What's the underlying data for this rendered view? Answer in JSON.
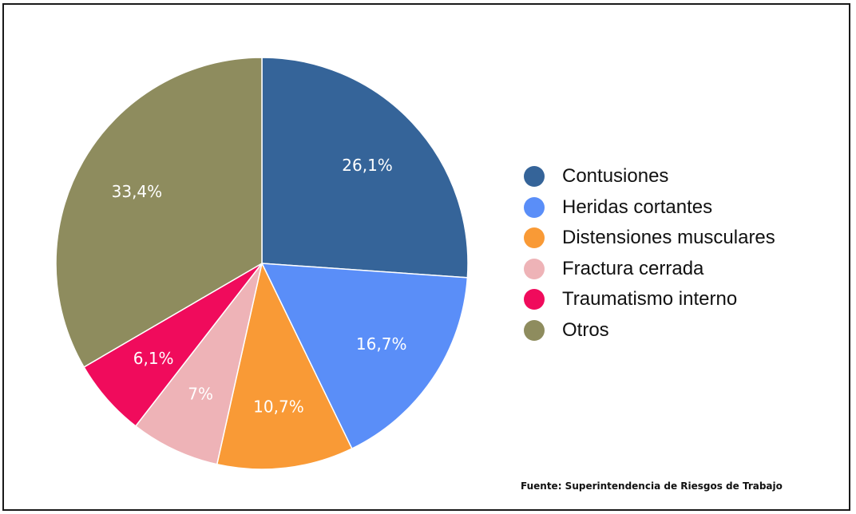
{
  "chart_data": {
    "type": "pie",
    "title": "",
    "slices": [
      {
        "label": "Contusiones",
        "value": 26.1,
        "display": "26,1%",
        "color": "#356499"
      },
      {
        "label": "Heridas cortantes",
        "value": 16.7,
        "display": "16,7%",
        "color": "#5a8ef8"
      },
      {
        "label": "Distensiones musculares",
        "value": 10.7,
        "display": "10,7%",
        "color": "#f99a36"
      },
      {
        "label": "Fractura cerrada",
        "value": 7,
        "display": "7%",
        "color": "#eeb3b7"
      },
      {
        "label": "Traumatismo interno",
        "value": 6.1,
        "display": "6,1%",
        "color": "#f00b5c"
      },
      {
        "label": "Otros",
        "value": 33.4,
        "display": "33,4%",
        "color": "#8e8c5e"
      }
    ],
    "legend_position": "right"
  },
  "source_text": "Fuente: Superintendencia de Riesgos de Trabajo"
}
